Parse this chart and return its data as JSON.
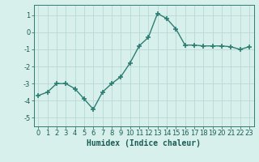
{
  "x": [
    0,
    1,
    2,
    3,
    4,
    5,
    6,
    7,
    8,
    9,
    10,
    11,
    12,
    13,
    14,
    15,
    16,
    17,
    18,
    19,
    20,
    21,
    22,
    23
  ],
  "y": [
    -3.7,
    -3.5,
    -3.0,
    -3.0,
    -3.3,
    -3.9,
    -4.5,
    -3.5,
    -3.0,
    -2.6,
    -1.8,
    -0.8,
    -0.3,
    1.1,
    0.8,
    0.2,
    -0.75,
    -0.75,
    -0.8,
    -0.8,
    -0.8,
    -0.85,
    -1.0,
    -0.85
  ],
  "line_color": "#2d7d72",
  "marker": "+",
  "markersize": 4,
  "markeredgewidth": 1.2,
  "linewidth": 1.0,
  "bg_color": "#d8f0ec",
  "grid_color": "#b8d8d4",
  "xlabel": "Humidex (Indice chaleur)",
  "yticks": [
    -5,
    -4,
    -3,
    -2,
    -1,
    0,
    1
  ],
  "xticks": [
    0,
    1,
    2,
    3,
    4,
    5,
    6,
    7,
    8,
    9,
    10,
    11,
    12,
    13,
    14,
    15,
    16,
    17,
    18,
    19,
    20,
    21,
    22,
    23
  ],
  "xlim": [
    -0.5,
    23.5
  ],
  "ylim": [
    -5.5,
    1.6
  ],
  "xlabel_fontsize": 7,
  "tick_fontsize": 6,
  "label_color": "#1a5c54",
  "axis_color": "#2d7d72"
}
